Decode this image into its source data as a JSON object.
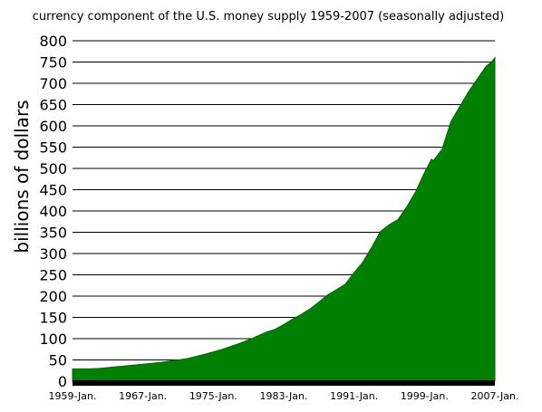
{
  "chart_data": {
    "type": "area",
    "title": "currency component of the U.S. money supply 1959-2007 (seasonally adjusted)",
    "xlabel": "",
    "ylabel": "billions of dollars",
    "ylim": [
      0,
      800
    ],
    "yticks": [
      0,
      50,
      100,
      150,
      200,
      250,
      300,
      350,
      400,
      450,
      500,
      550,
      600,
      650,
      700,
      750,
      800
    ],
    "xlim": [
      1959.0,
      2007.0
    ],
    "xticks": [
      {
        "value": 1959.0,
        "label": "1959-Jan."
      },
      {
        "value": 1967.0,
        "label": "1967-Jan."
      },
      {
        "value": 1975.0,
        "label": "1975-Jan."
      },
      {
        "value": 1983.0,
        "label": "1983-Jan."
      },
      {
        "value": 1991.0,
        "label": "1991-Jan."
      },
      {
        "value": 1999.0,
        "label": "1999-Jan."
      },
      {
        "value": 2007.0,
        "label": "2007-Jan."
      }
    ],
    "grid": true,
    "fill_color": "#008000",
    "series": [
      {
        "x": [
          1959,
          1960,
          1961,
          1962,
          1963,
          1964,
          1965,
          1966,
          1967,
          1968,
          1969,
          1970,
          1971,
          1972,
          1973,
          1974,
          1975,
          1976,
          1977,
          1978,
          1979,
          1980,
          1981,
          1982,
          1983,
          1984,
          1985,
          1986,
          1987,
          1988,
          1989,
          1990,
          1991,
          1992,
          1993,
          1994,
          1995,
          1996,
          1997,
          1998,
          1999,
          1999.8,
          2000.0,
          2001,
          2002,
          2003,
          2004,
          2005,
          2006,
          2006.6,
          2007
        ],
        "values": [
          29,
          29,
          29,
          30,
          32,
          34,
          36,
          38,
          40,
          42,
          44,
          47,
          50,
          53,
          58,
          63,
          69,
          75,
          82,
          89,
          97,
          106,
          115,
          122,
          133,
          146,
          157,
          170,
          186,
          203,
          215,
          228,
          255,
          280,
          315,
          352,
          368,
          380,
          410,
          445,
          490,
          522,
          518,
          545,
          610,
          645,
          680,
          710,
          740,
          750,
          760
        ]
      }
    ]
  }
}
